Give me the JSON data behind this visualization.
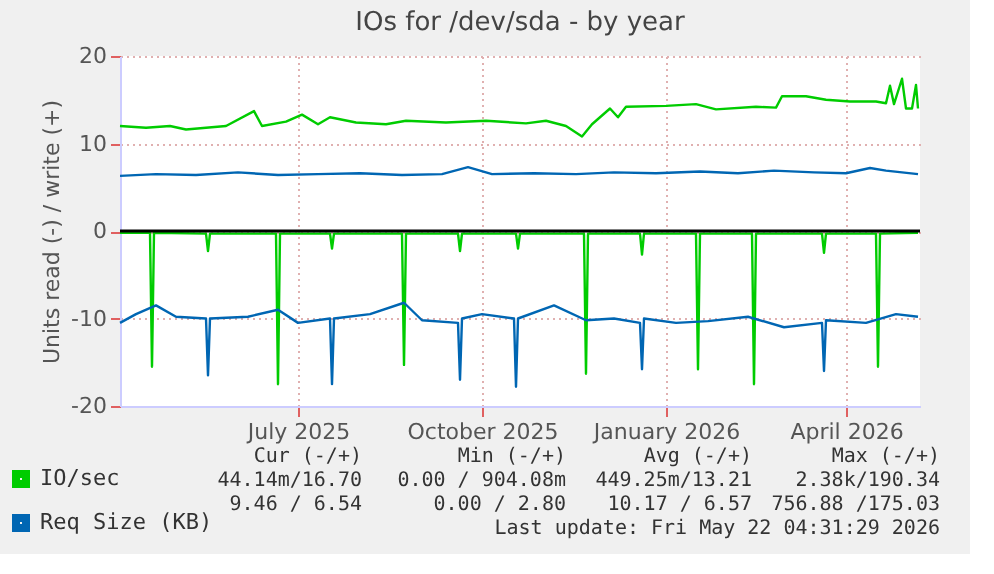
{
  "chart_data": {
    "type": "line",
    "title": "IOs for /dev/sda - by year",
    "ylabel": "Units read (-) / write (+)",
    "xlim": [
      "2025-04-17",
      "2026-05-22"
    ],
    "xticks": [
      {
        "value": "2025-07-15",
        "label": "July 2025"
      },
      {
        "value": "2025-10-15",
        "label": "October 2025"
      },
      {
        "value": "2026-01-15",
        "label": "January 2026"
      },
      {
        "value": "2026-04-15",
        "label": "April 2026"
      }
    ],
    "ylim": [
      -20,
      20
    ],
    "yticks": [
      -20,
      -10,
      0,
      10,
      20
    ],
    "grid": true,
    "legend": "bottom left",
    "ref_lines": [
      {
        "axis": "y",
        "value": 0,
        "color": "#000000"
      }
    ],
    "series": [
      {
        "name": "IO/sec",
        "color": "#00cc00",
        "x": [
          "2025-04-17",
          "2025-04-30",
          "2025-05-12",
          "2025-05-20",
          "2025-06-09",
          "2025-06-23",
          "2025-06-27",
          "2025-07-09",
          "2025-07-17",
          "2025-07-25",
          "2025-07-31",
          "2025-08-13",
          "2025-08-28",
          "2025-09-07",
          "2025-09-27",
          "2025-10-17",
          "2025-11-06",
          "2025-11-16",
          "2025-11-26",
          "2025-12-04",
          "2025-12-09",
          "2025-12-18",
          "2025-12-22",
          "2025-12-26",
          "2026-01-15",
          "2026-01-30",
          "2026-02-09",
          "2026-03-01",
          "2026-03-11",
          "2026-03-14",
          "2026-03-26",
          "2026-04-05",
          "2026-04-17",
          "2026-04-30",
          "2026-05-05",
          "2026-05-07",
          "2026-05-09",
          "2026-05-13",
          "2026-05-15",
          "2026-05-18",
          "2026-05-20",
          "2026-05-21"
        ],
        "values": [
          12.0,
          11.8,
          12.0,
          11.6,
          12.0,
          13.7,
          12.0,
          12.5,
          13.3,
          12.2,
          13.0,
          12.4,
          12.2,
          12.6,
          12.4,
          12.6,
          12.3,
          12.6,
          12.0,
          10.8,
          12.2,
          14.0,
          13.0,
          14.2,
          14.3,
          14.5,
          13.9,
          14.2,
          14.1,
          15.4,
          15.4,
          15.0,
          14.8,
          14.8,
          14.6,
          16.6,
          14.5,
          17.4,
          14.0,
          14.0,
          16.7,
          14.0
        ]
      },
      {
        "color": "#00cc00",
        "x": [
          "2025-04-17",
          "2025-05-02",
          "2025-05-03",
          "2025-05-04",
          "2025-05-30",
          "2025-05-31",
          "2025-06-01",
          "2025-07-04",
          "2025-07-05",
          "2025-07-06",
          "2025-07-31",
          "2025-08-01",
          "2025-08-02",
          "2025-09-05",
          "2025-09-06",
          "2025-09-07",
          "2025-10-03",
          "2025-10-04",
          "2025-10-05",
          "2025-11-01",
          "2025-11-02",
          "2025-11-03",
          "2025-12-05",
          "2025-12-06",
          "2025-12-07",
          "2026-01-02",
          "2026-01-03",
          "2026-01-04",
          "2026-01-30",
          "2026-01-31",
          "2026-02-01",
          "2026-02-27",
          "2026-02-28",
          "2026-03-01",
          "2026-04-03",
          "2026-04-04",
          "2026-04-05",
          "2026-04-30",
          "2026-05-01",
          "2026-05-02",
          "2026-05-21"
        ],
        "values": [
          -0.2,
          -0.2,
          -15.5,
          -0.2,
          -0.3,
          -2.3,
          -0.3,
          -0.3,
          -17.5,
          -0.3,
          -0.3,
          -2.0,
          -0.3,
          -0.3,
          -15.3,
          -0.3,
          -0.3,
          -2.3,
          -0.3,
          -0.3,
          -2.0,
          -0.3,
          -0.3,
          -16.3,
          -0.3,
          -0.3,
          -2.7,
          -0.3,
          -0.3,
          -15.8,
          -0.3,
          -0.3,
          -17.5,
          -0.3,
          -0.3,
          -2.5,
          -0.3,
          -0.3,
          -15.5,
          -0.3,
          -0.2
        ]
      },
      {
        "name": "Req Size (KB)",
        "color": "#0066b3",
        "x": [
          "2025-04-17",
          "2025-05-05",
          "2025-05-25",
          "2025-06-15",
          "2025-07-05",
          "2025-07-25",
          "2025-08-15",
          "2025-09-05",
          "2025-09-25",
          "2025-10-08",
          "2025-10-20",
          "2025-11-10",
          "2025-12-01",
          "2025-12-20",
          "2026-01-10",
          "2026-02-01",
          "2026-02-20",
          "2026-03-10",
          "2026-03-30",
          "2026-04-15",
          "2026-04-27",
          "2026-05-05",
          "2026-05-21"
        ],
        "values": [
          6.3,
          6.5,
          6.4,
          6.7,
          6.4,
          6.5,
          6.6,
          6.4,
          6.5,
          7.3,
          6.5,
          6.6,
          6.5,
          6.7,
          6.6,
          6.8,
          6.6,
          6.9,
          6.7,
          6.6,
          7.2,
          6.9,
          6.5
        ]
      },
      {
        "color": "#0066b3",
        "x": [
          "2025-04-17",
          "2025-04-25",
          "2025-05-05",
          "2025-05-15",
          "2025-05-30",
          "2025-05-31",
          "2025-06-01",
          "2025-06-20",
          "2025-07-05",
          "2025-07-15",
          "2025-07-31",
          "2025-08-01",
          "2025-08-02",
          "2025-08-20",
          "2025-09-06",
          "2025-09-15",
          "2025-10-03",
          "2025-10-04",
          "2025-10-05",
          "2025-10-15",
          "2025-10-31",
          "2025-11-01",
          "2025-11-02",
          "2025-11-20",
          "2025-12-06",
          "2025-12-20",
          "2026-01-02",
          "2026-01-03",
          "2026-01-04",
          "2026-01-20",
          "2026-02-05",
          "2026-02-25",
          "2026-03-15",
          "2026-04-03",
          "2026-04-04",
          "2026-04-05",
          "2026-04-25",
          "2026-05-10",
          "2026-05-21"
        ],
        "values": [
          -10.5,
          -9.5,
          -8.5,
          -9.8,
          -10.0,
          -16.5,
          -10.0,
          -9.8,
          -9.0,
          -10.5,
          -10.0,
          -17.5,
          -10.0,
          -9.5,
          -8.2,
          -10.2,
          -10.5,
          -17.0,
          -10.0,
          -9.5,
          -10.0,
          -17.8,
          -10.0,
          -8.5,
          -10.2,
          -10.0,
          -10.5,
          -15.8,
          -10.0,
          -10.5,
          -10.3,
          -9.8,
          -11.0,
          -10.5,
          -16.0,
          -10.2,
          -10.5,
          -9.5,
          -9.8
        ]
      }
    ],
    "annotations": [
      "Cur (-/+)",
      "Min (-/+)",
      "Avg (-/+)",
      "Max (-/+)",
      "44.14m/16.70",
      "0.00 / 904.08m",
      "449.25m/13.21",
      "2.38k/190.34",
      "9.46 / 6.54",
      "0.00 / 2.80",
      "10.17 / 6.57",
      "756.88 /175.03",
      "Last update: Fri May 22 04:31:29 2026"
    ]
  }
}
